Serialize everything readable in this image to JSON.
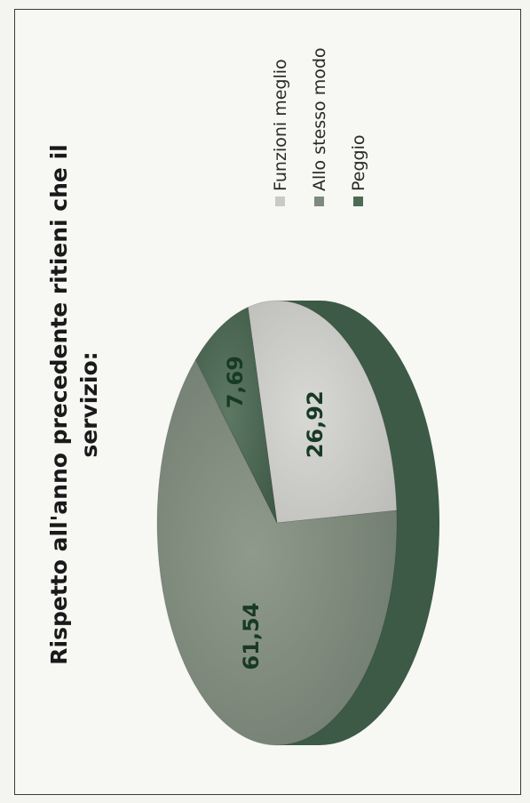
{
  "chart_data": {
    "type": "pie",
    "title": "Rispetto all'anno precedente ritieni che il servizio:",
    "title_lines": [
      "Rispetto all'anno precedente ritieni che il",
      "servizio:"
    ],
    "categories": [
      "Funzioni meglio",
      "Allo stesso modo",
      "Peggio"
    ],
    "values": [
      26.92,
      61.54,
      7.69
    ],
    "value_labels": [
      "26,92",
      "61,54",
      "7,69"
    ],
    "legend_position": "right",
    "colors": [
      "#c9c9c6",
      "#7e8a7d",
      "#4d6a55"
    ]
  }
}
